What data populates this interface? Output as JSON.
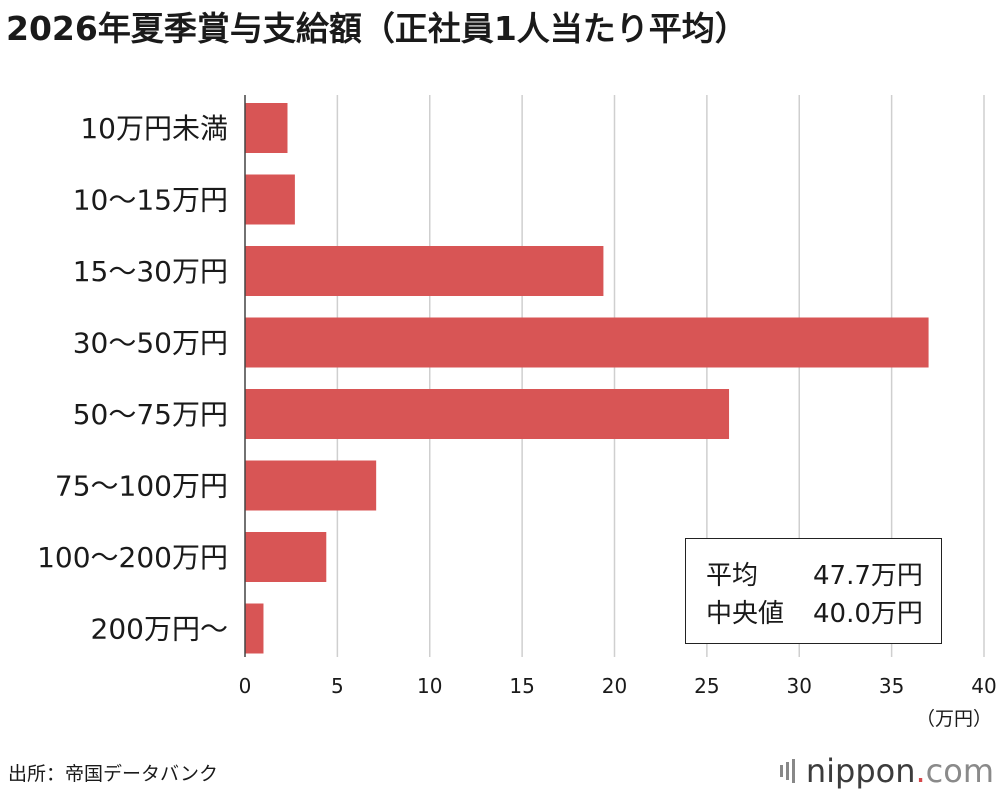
{
  "title": "2026年夏季賞与支給額（正社員1人当たり平均）",
  "stats": {
    "rows": [
      {
        "label": "平均",
        "value": "47.7万円"
      },
      {
        "label": "中央値",
        "value": "40.0万円"
      }
    ]
  },
  "source": "出所：帝国データバンク",
  "logo": {
    "name": "nippon",
    "dot": ".",
    "tld": "com"
  },
  "colors": {
    "bar": "#d85555",
    "grid": "#cfcfcf",
    "axis": "#444444"
  },
  "chart_data": {
    "type": "bar",
    "orientation": "horizontal",
    "categories": [
      "10万円未満",
      "10〜15万円",
      "15〜30万円",
      "30〜50万円",
      "50〜75万円",
      "75〜100万円",
      "100〜200万円",
      "200万円〜"
    ],
    "values": [
      2.3,
      2.7,
      19.4,
      37.0,
      26.2,
      7.1,
      4.4,
      1.0
    ],
    "xlim": [
      0,
      40
    ],
    "xticks": [
      0,
      5,
      10,
      15,
      20,
      25,
      30,
      35,
      40
    ],
    "xunit": "（万円）",
    "grid": true
  }
}
